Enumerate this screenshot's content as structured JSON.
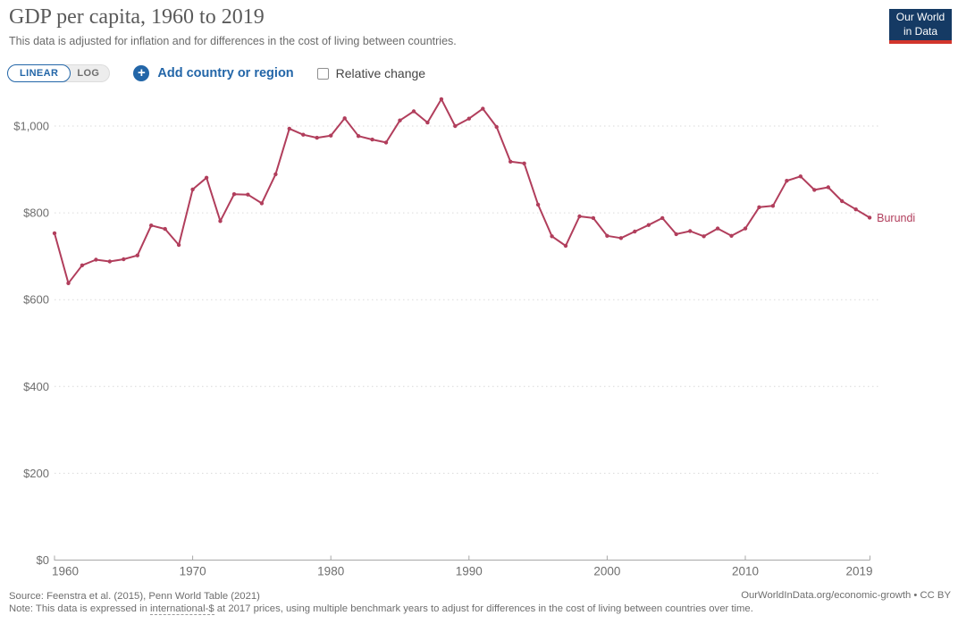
{
  "header": {
    "title": "GDP per capita, 1960 to 2019",
    "subtitle": "This data is adjusted for inflation and for differences in the cost of living between countries."
  },
  "logo": {
    "line1": "Our World",
    "line2": "in Data"
  },
  "controls": {
    "linear_label": "LINEAR",
    "log_label": "LOG",
    "add_country_label": "Add country or region",
    "relative_change_label": "Relative change",
    "relative_change_checked": false,
    "accent_blue": "#2366a8"
  },
  "chart_data": {
    "type": "line",
    "title": "GDP per capita, 1960 to 2019",
    "xlabel": "",
    "ylabel": "",
    "xlim": [
      1960,
      2019
    ],
    "ylim": [
      0,
      1100
    ],
    "grid": "horizontal-dotted",
    "legend_position": "end-of-line",
    "x_ticks": [
      1960,
      1970,
      1980,
      1990,
      2000,
      2010,
      2019
    ],
    "y_ticks": [
      0,
      200,
      400,
      600,
      800,
      1000
    ],
    "y_tick_labels": [
      "$0",
      "$200",
      "$400",
      "$600",
      "$800",
      "$1,000"
    ],
    "x": [
      1960,
      1961,
      1962,
      1963,
      1964,
      1965,
      1966,
      1967,
      1968,
      1969,
      1970,
      1971,
      1972,
      1973,
      1974,
      1975,
      1976,
      1977,
      1978,
      1979,
      1980,
      1981,
      1982,
      1983,
      1984,
      1985,
      1986,
      1987,
      1988,
      1989,
      1990,
      1991,
      1992,
      1993,
      1994,
      1995,
      1996,
      1997,
      1998,
      1999,
      2000,
      2001,
      2002,
      2003,
      2004,
      2005,
      2006,
      2007,
      2008,
      2009,
      2010,
      2011,
      2012,
      2013,
      2014,
      2015,
      2016,
      2017,
      2018,
      2019
    ],
    "series": [
      {
        "name": "Burundi",
        "color": "#b13e5c",
        "values": [
          753,
          638,
          679,
          692,
          688,
          693,
          702,
          771,
          763,
          726,
          854,
          881,
          781,
          843,
          842,
          822,
          889,
          994,
          980,
          973,
          978,
          1018,
          977,
          969,
          962,
          1013,
          1034,
          1008,
          1062,
          1000,
          1017,
          1040,
          998,
          918,
          914,
          819,
          746,
          724,
          792,
          788,
          747,
          742,
          757,
          772,
          788,
          751,
          758,
          746,
          764,
          747,
          764,
          813,
          816,
          874,
          884,
          853,
          859,
          827,
          808,
          789
        ]
      }
    ]
  },
  "footer": {
    "source": "Source: Feenstra et al. (2015), Penn World Table (2021)",
    "note_prefix": "Note: This data is expressed in ",
    "note_link": "international-$",
    "note_suffix": " at 2017 prices, using multiple benchmark years to adjust for differences in the cost of living between countries over time.",
    "right": "OurWorldInData.org/economic-growth • CC BY"
  }
}
